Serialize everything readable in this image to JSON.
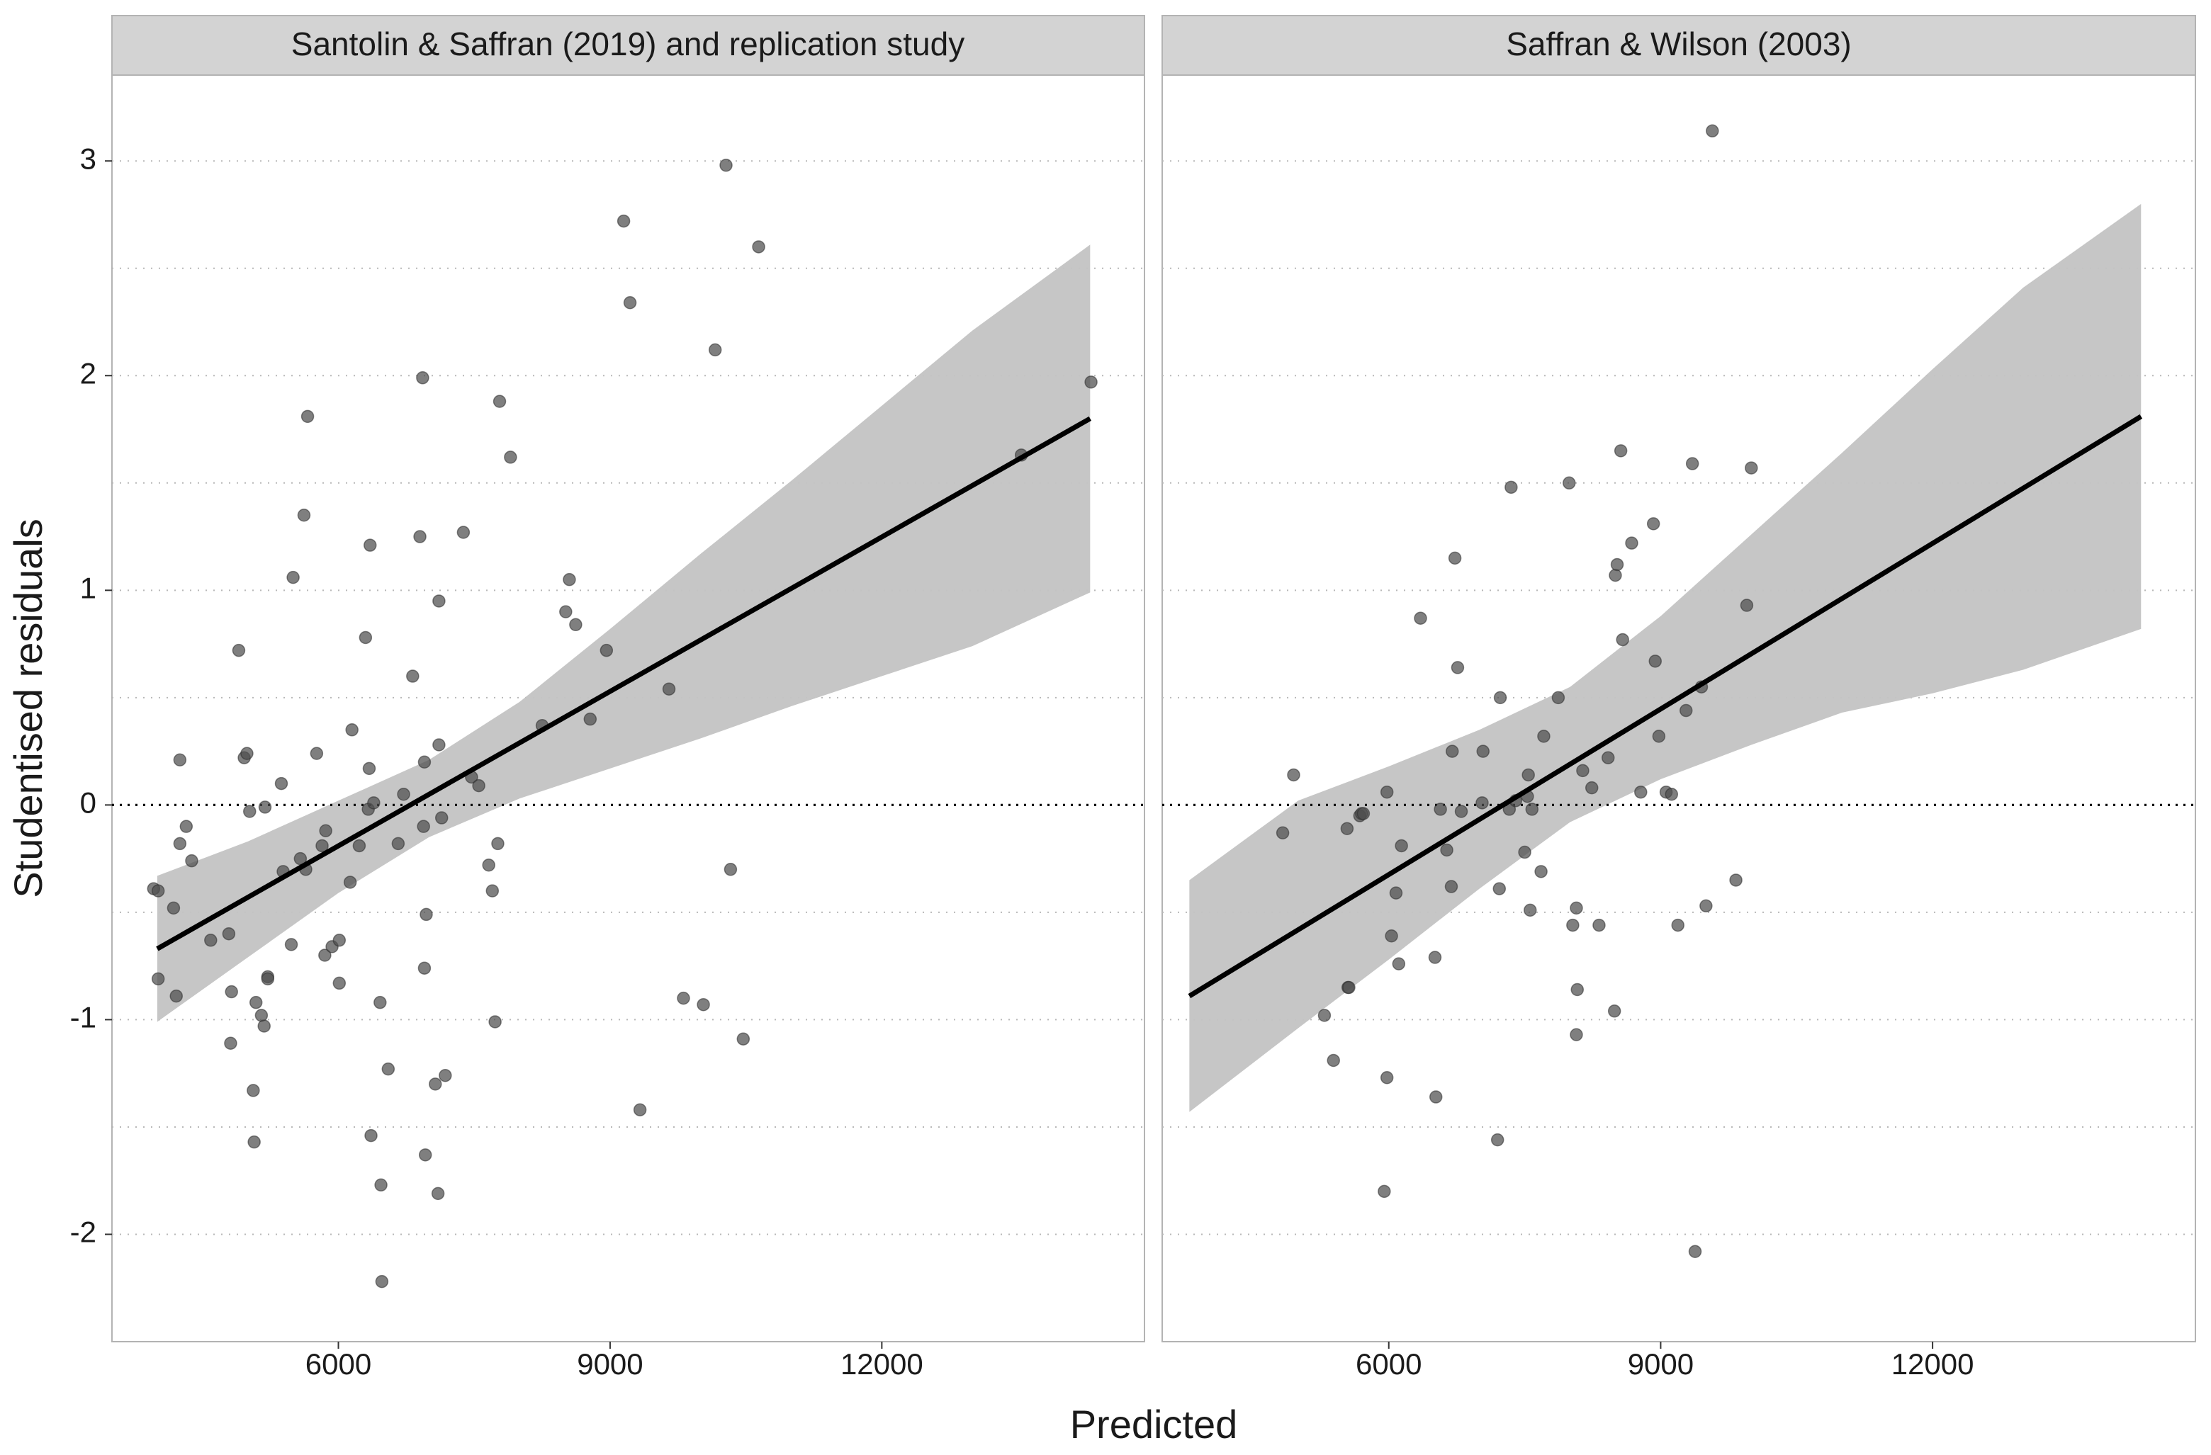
{
  "chart_data": {
    "type": "scatter",
    "xlabel": "Predicted",
    "ylabel": "Studentised residuals",
    "xlim": [
      3500,
      14900
    ],
    "ylim": [
      -2.5,
      3.4
    ],
    "x_ticks": [
      6000,
      9000,
      12000
    ],
    "x_tick_labels": [
      "6000",
      "9000",
      "12000"
    ],
    "y_ticks": [
      -2,
      -1,
      0,
      1,
      2,
      3
    ],
    "y_tick_labels": [
      "-2",
      "-1",
      "0",
      "1",
      "2",
      "3"
    ],
    "y_minor_gridlines": [
      -1.5,
      -0.5,
      0.5,
      1.5,
      2.5
    ],
    "grid": "horizontal dotted",
    "reference_line": 0,
    "colors": {
      "points": "#4d4d4d",
      "fit_line": "#000000",
      "ci_band": "#c3c3c3",
      "strip": "#d3d3d3",
      "grid": "#b8b8b8",
      "panel_border": "#b3b3b3"
    },
    "panels": [
      {
        "title": "Santolin & Saffran (2019) and replication study",
        "fit": {
          "x": [
            4000,
            14300
          ],
          "y": [
            -0.67,
            1.8
          ]
        },
        "band_upper": [
          [
            4000,
            -0.33
          ],
          [
            5000,
            -0.17
          ],
          [
            6000,
            0.02
          ],
          [
            7000,
            0.21
          ],
          [
            8000,
            0.48
          ],
          [
            9000,
            0.82
          ],
          [
            10000,
            1.17
          ],
          [
            11000,
            1.51
          ],
          [
            12000,
            1.86
          ],
          [
            13000,
            2.21
          ],
          [
            14300,
            2.61
          ]
        ],
        "band_lower": [
          [
            4000,
            -1.01
          ],
          [
            5000,
            -0.71
          ],
          [
            6000,
            -0.41
          ],
          [
            7000,
            -0.15
          ],
          [
            8000,
            0.03
          ],
          [
            9000,
            0.17
          ],
          [
            10000,
            0.31
          ],
          [
            11000,
            0.46
          ],
          [
            12000,
            0.6
          ],
          [
            13000,
            0.74
          ],
          [
            14300,
            0.99
          ]
        ],
        "points": [
          [
            3960,
            -0.39
          ],
          [
            4010,
            -0.4
          ],
          [
            4010,
            -0.81
          ],
          [
            4180,
            -0.48
          ],
          [
            4210,
            -0.89
          ],
          [
            4250,
            0.21
          ],
          [
            4250,
            -0.18
          ],
          [
            4320,
            -0.1
          ],
          [
            4380,
            -0.26
          ],
          [
            4590,
            -0.63
          ],
          [
            4790,
            -0.6
          ],
          [
            4810,
            -1.11
          ],
          [
            4820,
            -0.87
          ],
          [
            4900,
            0.72
          ],
          [
            4960,
            0.22
          ],
          [
            4990,
            0.24
          ],
          [
            5020,
            -0.03
          ],
          [
            5060,
            -1.33
          ],
          [
            5070,
            -1.57
          ],
          [
            5090,
            -0.92
          ],
          [
            5150,
            -0.98
          ],
          [
            5180,
            -1.03
          ],
          [
            5190,
            -0.01
          ],
          [
            5220,
            -0.8
          ],
          [
            5220,
            -0.81
          ],
          [
            5370,
            0.1
          ],
          [
            5390,
            -0.31
          ],
          [
            5480,
            -0.65
          ],
          [
            5500,
            1.06
          ],
          [
            5580,
            -0.25
          ],
          [
            5620,
            1.35
          ],
          [
            5640,
            -0.3
          ],
          [
            5660,
            1.81
          ],
          [
            5760,
            0.24
          ],
          [
            5820,
            -0.19
          ],
          [
            5850,
            -0.7
          ],
          [
            5860,
            -0.12
          ],
          [
            5930,
            -0.66
          ],
          [
            6010,
            -0.63
          ],
          [
            6010,
            -0.83
          ],
          [
            6130,
            -0.36
          ],
          [
            6150,
            0.35
          ],
          [
            6230,
            -0.19
          ],
          [
            6300,
            0.78
          ],
          [
            6330,
            -0.02
          ],
          [
            6340,
            0.17
          ],
          [
            6350,
            1.21
          ],
          [
            6360,
            -1.54
          ],
          [
            6390,
            0.01
          ],
          [
            6460,
            -0.92
          ],
          [
            6470,
            -1.77
          ],
          [
            6480,
            -2.22
          ],
          [
            6550,
            -1.23
          ],
          [
            6660,
            -0.18
          ],
          [
            6720,
            0.05
          ],
          [
            6820,
            0.6
          ],
          [
            6900,
            1.25
          ],
          [
            6930,
            1.99
          ],
          [
            6940,
            -0.1
          ],
          [
            6950,
            0.2
          ],
          [
            6950,
            -0.76
          ],
          [
            6960,
            -1.63
          ],
          [
            6970,
            -0.51
          ],
          [
            7070,
            -1.3
          ],
          [
            7100,
            -1.81
          ],
          [
            7110,
            0.95
          ],
          [
            7110,
            0.28
          ],
          [
            7140,
            -0.06
          ],
          [
            7180,
            -1.26
          ],
          [
            7380,
            1.27
          ],
          [
            7470,
            0.13
          ],
          [
            7550,
            0.09
          ],
          [
            7660,
            -0.28
          ],
          [
            7700,
            -0.4
          ],
          [
            7730,
            -1.01
          ],
          [
            7760,
            -0.18
          ],
          [
            7780,
            1.88
          ],
          [
            7900,
            1.62
          ],
          [
            8250,
            0.37
          ],
          [
            8510,
            0.9
          ],
          [
            8550,
            1.05
          ],
          [
            8620,
            0.84
          ],
          [
            8780,
            0.4
          ],
          [
            8960,
            0.72
          ],
          [
            9150,
            2.72
          ],
          [
            9220,
            2.34
          ],
          [
            9330,
            -1.42
          ],
          [
            9650,
            0.54
          ],
          [
            9810,
            -0.9
          ],
          [
            10030,
            -0.93
          ],
          [
            10160,
            2.12
          ],
          [
            10280,
            2.98
          ],
          [
            10330,
            -0.3
          ],
          [
            10470,
            -1.09
          ],
          [
            10640,
            2.6
          ],
          [
            13540,
            1.63
          ],
          [
            14310,
            1.97
          ]
        ]
      },
      {
        "title": "Saffran & Wilson (2003)",
        "fit": {
          "x": [
            3800,
            14300
          ],
          "y": [
            -0.89,
            1.81
          ]
        },
        "band_upper": [
          [
            3800,
            -0.35
          ],
          [
            5000,
            0.02
          ],
          [
            6000,
            0.18
          ],
          [
            7000,
            0.35
          ],
          [
            8000,
            0.55
          ],
          [
            9000,
            0.88
          ],
          [
            10000,
            1.26
          ],
          [
            11000,
            1.64
          ],
          [
            12000,
            2.03
          ],
          [
            13000,
            2.41
          ],
          [
            14300,
            2.8
          ]
        ],
        "band_lower": [
          [
            3800,
            -1.43
          ],
          [
            5000,
            -1.04
          ],
          [
            6000,
            -0.72
          ],
          [
            7000,
            -0.39
          ],
          [
            8000,
            -0.08
          ],
          [
            9000,
            0.12
          ],
          [
            10000,
            0.28
          ],
          [
            11000,
            0.43
          ],
          [
            12000,
            0.52
          ],
          [
            13000,
            0.63
          ],
          [
            14300,
            0.82
          ]
        ],
        "points": [
          [
            4830,
            -0.13
          ],
          [
            4950,
            0.14
          ],
          [
            5290,
            -0.98
          ],
          [
            5390,
            -1.19
          ],
          [
            5540,
            -0.11
          ],
          [
            5550,
            -0.85
          ],
          [
            5560,
            -0.85
          ],
          [
            5680,
            -0.05
          ],
          [
            5700,
            -0.04
          ],
          [
            5720,
            -0.04
          ],
          [
            5950,
            -1.8
          ],
          [
            5980,
            -1.27
          ],
          [
            5980,
            0.06
          ],
          [
            6030,
            -0.61
          ],
          [
            6080,
            -0.41
          ],
          [
            6110,
            -0.74
          ],
          [
            6140,
            -0.19
          ],
          [
            6350,
            0.87
          ],
          [
            6510,
            -0.71
          ],
          [
            6520,
            -1.36
          ],
          [
            6570,
            -0.02
          ],
          [
            6640,
            -0.21
          ],
          [
            6690,
            -0.38
          ],
          [
            6700,
            0.25
          ],
          [
            6730,
            1.15
          ],
          [
            6760,
            0.64
          ],
          [
            6800,
            -0.03
          ],
          [
            7030,
            0.01
          ],
          [
            7040,
            0.25
          ],
          [
            7200,
            -1.56
          ],
          [
            7220,
            -0.39
          ],
          [
            7230,
            0.5
          ],
          [
            7330,
            -0.02
          ],
          [
            7350,
            1.48
          ],
          [
            7400,
            0.02
          ],
          [
            7500,
            -0.22
          ],
          [
            7530,
            0.04
          ],
          [
            7540,
            0.14
          ],
          [
            7560,
            -0.49
          ],
          [
            7580,
            -0.02
          ],
          [
            7680,
            -0.31
          ],
          [
            7710,
            0.32
          ],
          [
            7870,
            0.5
          ],
          [
            7990,
            1.5
          ],
          [
            8030,
            -0.56
          ],
          [
            8070,
            -0.48
          ],
          [
            8070,
            -1.07
          ],
          [
            8080,
            -0.86
          ],
          [
            8140,
            0.16
          ],
          [
            8240,
            0.08
          ],
          [
            8320,
            -0.56
          ],
          [
            8420,
            0.22
          ],
          [
            8490,
            -0.96
          ],
          [
            8500,
            1.07
          ],
          [
            8520,
            1.12
          ],
          [
            8560,
            1.65
          ],
          [
            8580,
            0.77
          ],
          [
            8680,
            1.22
          ],
          [
            8780,
            0.06
          ],
          [
            8920,
            1.31
          ],
          [
            8940,
            0.67
          ],
          [
            8980,
            0.32
          ],
          [
            9060,
            0.06
          ],
          [
            9120,
            0.05
          ],
          [
            9190,
            -0.56
          ],
          [
            9280,
            0.44
          ],
          [
            9350,
            1.59
          ],
          [
            9380,
            -2.08
          ],
          [
            9450,
            0.55
          ],
          [
            9500,
            -0.47
          ],
          [
            9570,
            3.14
          ],
          [
            9830,
            -0.35
          ],
          [
            9950,
            0.93
          ],
          [
            10000,
            1.57
          ]
        ]
      }
    ]
  }
}
